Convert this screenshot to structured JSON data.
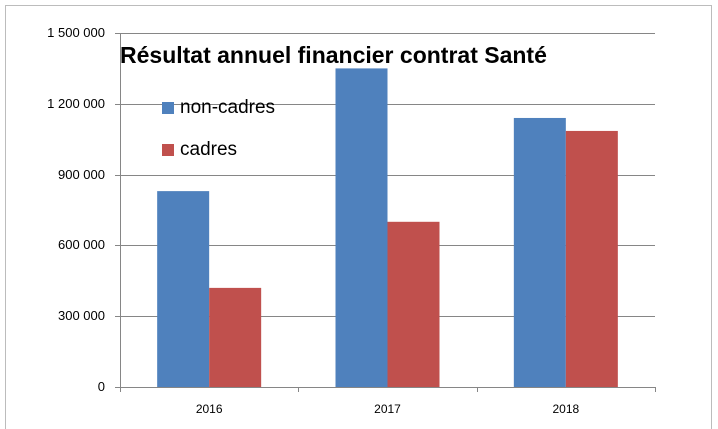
{
  "chart_data": {
    "type": "bar",
    "title": "Résultat annuel financier contrat Santé",
    "categories": [
      "2016",
      "2017",
      "2018"
    ],
    "series": [
      {
        "name": "non-cadres",
        "color": "#4f81bd",
        "values": [
          830000,
          1350000,
          1140000
        ]
      },
      {
        "name": "cadres",
        "color": "#c0504d",
        "values": [
          420000,
          700000,
          1085000
        ]
      }
    ],
    "ylim": [
      0,
      1500000
    ],
    "yticks": [
      0,
      {
        "value": 300000,
        "label": "300 000"
      },
      {
        "value": 600000,
        "label": "600 000"
      },
      {
        "value": 900000,
        "label": "900 000"
      },
      {
        "value": 1200000,
        "label": "1 200 000"
      },
      {
        "value": 1500000,
        "label": "1 500 000"
      }
    ],
    "grid": true,
    "legend": "top-left"
  }
}
